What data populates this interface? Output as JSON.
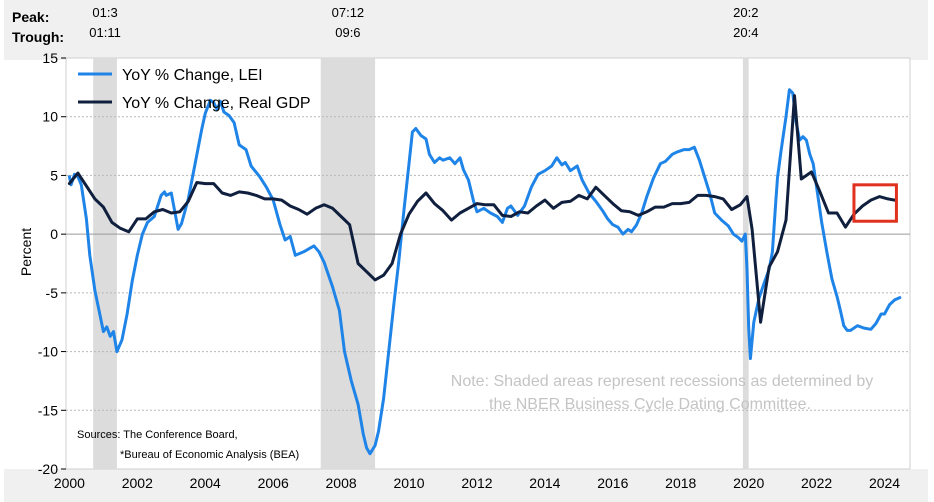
{
  "chart_data": {
    "type": "line",
    "title": "",
    "ylabel": "Percent",
    "xlabel": "",
    "ylim": [
      -20,
      15
    ],
    "xlim": [
      1999.9,
      2024.75
    ],
    "y_ticks": [
      15,
      10,
      5,
      0,
      -5,
      -10,
      -15,
      -20
    ],
    "x_ticks": [
      2000,
      2002,
      2004,
      2006,
      2008,
      2010,
      2012,
      2014,
      2016,
      2018,
      2020,
      2022,
      2024
    ],
    "legend": {
      "position": "top-left",
      "entries": [
        "YoY % Change, LEI",
        "YoY % Change, Real GDP"
      ]
    },
    "header": {
      "peak_label": "Peak:",
      "trough_label": "Trough:"
    },
    "recessions": [
      {
        "peak": "01:3",
        "trough": "01:11",
        "start": 2000.7,
        "end": 2001.4
      },
      {
        "peak": "07:12",
        "trough": "09:6",
        "start": 2007.4,
        "end": 2009.0
      },
      {
        "peak": "20:2",
        "trough": "20:4",
        "start": 2019.83,
        "end": 2020.0
      }
    ],
    "note": [
      "Note: Shaded areas represent recessions as determined by",
      "the NBER Business Cycle Dating Committee."
    ],
    "sources": [
      "Sources: The Conference Board,",
      "*Bureau of Economic Analysis (BEA)"
    ],
    "highlight_box": {
      "x_range": [
        2023.1,
        2024.35
      ],
      "y_range": [
        1.1,
        4.2
      ],
      "color": "#e0301e"
    },
    "series": [
      {
        "name": "YoY % Change, LEI",
        "color": "#1f84e8",
        "points": [
          [
            2000.0,
            4.9
          ],
          [
            2000.05,
            4.2
          ],
          [
            2000.15,
            5.1
          ],
          [
            2000.25,
            4.9
          ],
          [
            2000.35,
            4.2
          ],
          [
            2000.5,
            1.3
          ],
          [
            2000.6,
            -1.8
          ],
          [
            2000.75,
            -4.8
          ],
          [
            2000.85,
            -6.2
          ],
          [
            2001.0,
            -8.3
          ],
          [
            2001.1,
            -7.9
          ],
          [
            2001.2,
            -8.7
          ],
          [
            2001.3,
            -8.3
          ],
          [
            2001.4,
            -10.0
          ],
          [
            2001.55,
            -9.0
          ],
          [
            2001.7,
            -6.8
          ],
          [
            2001.85,
            -4.0
          ],
          [
            2002.0,
            -1.8
          ],
          [
            2002.15,
            0.0
          ],
          [
            2002.3,
            1.0
          ],
          [
            2002.5,
            1.5
          ],
          [
            2002.7,
            3.3
          ],
          [
            2002.8,
            3.6
          ],
          [
            2002.85,
            3.3
          ],
          [
            2003.0,
            3.5
          ],
          [
            2003.2,
            0.4
          ],
          [
            2003.3,
            0.9
          ],
          [
            2003.5,
            3.0
          ],
          [
            2003.7,
            6.0
          ],
          [
            2003.9,
            9.0
          ],
          [
            2004.0,
            10.3
          ],
          [
            2004.15,
            11.4
          ],
          [
            2004.25,
            11.2
          ],
          [
            2004.35,
            10.6
          ],
          [
            2004.45,
            11.3
          ],
          [
            2004.55,
            10.4
          ],
          [
            2004.7,
            10.1
          ],
          [
            2004.85,
            9.5
          ],
          [
            2005.0,
            7.6
          ],
          [
            2005.2,
            7.2
          ],
          [
            2005.35,
            5.8
          ],
          [
            2005.6,
            4.9
          ],
          [
            2005.8,
            4.0
          ],
          [
            2006.0,
            2.9
          ],
          [
            2006.2,
            0.8
          ],
          [
            2006.35,
            -0.5
          ],
          [
            2006.5,
            -0.2
          ],
          [
            2006.65,
            -1.8
          ],
          [
            2006.9,
            -1.5
          ],
          [
            2007.2,
            -1.0
          ],
          [
            2007.35,
            -1.5
          ],
          [
            2007.5,
            -2.4
          ],
          [
            2007.75,
            -4.5
          ],
          [
            2007.95,
            -6.5
          ],
          [
            2008.1,
            -10.0
          ],
          [
            2008.3,
            -12.5
          ],
          [
            2008.5,
            -14.5
          ],
          [
            2008.65,
            -17.0
          ],
          [
            2008.75,
            -18.2
          ],
          [
            2008.85,
            -18.7
          ],
          [
            2009.0,
            -18.0
          ],
          [
            2009.1,
            -16.8
          ],
          [
            2009.25,
            -14.0
          ],
          [
            2009.4,
            -10.0
          ],
          [
            2009.55,
            -6.0
          ],
          [
            2009.7,
            -2.3
          ],
          [
            2009.85,
            2.0
          ],
          [
            2010.0,
            6.0
          ],
          [
            2010.1,
            8.7
          ],
          [
            2010.2,
            9.0
          ],
          [
            2010.35,
            8.4
          ],
          [
            2010.5,
            8.1
          ],
          [
            2010.6,
            6.8
          ],
          [
            2010.75,
            6.1
          ],
          [
            2010.9,
            6.5
          ],
          [
            2011.0,
            6.3
          ],
          [
            2011.2,
            6.5
          ],
          [
            2011.35,
            6.0
          ],
          [
            2011.5,
            6.5
          ],
          [
            2011.6,
            5.5
          ],
          [
            2011.75,
            4.6
          ],
          [
            2011.9,
            2.8
          ],
          [
            2012.0,
            1.9
          ],
          [
            2012.2,
            2.2
          ],
          [
            2012.4,
            1.8
          ],
          [
            2012.6,
            1.5
          ],
          [
            2012.75,
            1.0
          ],
          [
            2012.9,
            2.2
          ],
          [
            2013.0,
            2.4
          ],
          [
            2013.2,
            1.6
          ],
          [
            2013.4,
            2.4
          ],
          [
            2013.6,
            4.0
          ],
          [
            2013.8,
            5.1
          ],
          [
            2014.0,
            5.4
          ],
          [
            2014.2,
            5.8
          ],
          [
            2014.35,
            6.5
          ],
          [
            2014.5,
            5.9
          ],
          [
            2014.6,
            6.1
          ],
          [
            2014.75,
            5.4
          ],
          [
            2014.95,
            5.8
          ],
          [
            2015.1,
            4.6
          ],
          [
            2015.3,
            3.5
          ],
          [
            2015.5,
            2.8
          ],
          [
            2015.7,
            2.0
          ],
          [
            2015.85,
            1.3
          ],
          [
            2016.0,
            0.8
          ],
          [
            2016.15,
            0.6
          ],
          [
            2016.3,
            0.0
          ],
          [
            2016.45,
            0.4
          ],
          [
            2016.55,
            0.2
          ],
          [
            2016.7,
            0.8
          ],
          [
            2016.85,
            1.8
          ],
          [
            2017.0,
            3.2
          ],
          [
            2017.2,
            4.8
          ],
          [
            2017.4,
            6.0
          ],
          [
            2017.55,
            6.2
          ],
          [
            2017.75,
            6.8
          ],
          [
            2017.9,
            7.0
          ],
          [
            2018.1,
            7.2
          ],
          [
            2018.25,
            7.2
          ],
          [
            2018.4,
            7.4
          ],
          [
            2018.55,
            6.3
          ],
          [
            2018.7,
            4.9
          ],
          [
            2018.85,
            3.5
          ],
          [
            2019.0,
            1.8
          ],
          [
            2019.2,
            1.2
          ],
          [
            2019.4,
            0.7
          ],
          [
            2019.55,
            0.0
          ],
          [
            2019.7,
            -0.3
          ],
          [
            2019.8,
            -0.6
          ],
          [
            2019.9,
            0.0
          ],
          [
            2019.95,
            -3.0
          ],
          [
            2020.0,
            -8.0
          ],
          [
            2020.05,
            -10.6
          ],
          [
            2020.15,
            -7.5
          ],
          [
            2020.3,
            -5.5
          ],
          [
            2020.45,
            -4.2
          ],
          [
            2020.6,
            -3.0
          ],
          [
            2020.7,
            -1.5
          ],
          [
            2020.8,
            2.8
          ],
          [
            2020.85,
            4.8
          ],
          [
            2020.95,
            7.0
          ],
          [
            2021.1,
            10.0
          ],
          [
            2021.2,
            12.3
          ],
          [
            2021.3,
            12.0
          ],
          [
            2021.4,
            9.5
          ],
          [
            2021.5,
            8.0
          ],
          [
            2021.6,
            8.3
          ],
          [
            2021.7,
            8.0
          ],
          [
            2021.8,
            6.8
          ],
          [
            2021.9,
            6.0
          ],
          [
            2022.0,
            4.0
          ],
          [
            2022.15,
            1.0
          ],
          [
            2022.3,
            -1.5
          ],
          [
            2022.45,
            -3.8
          ],
          [
            2022.6,
            -5.3
          ],
          [
            2022.7,
            -6.5
          ],
          [
            2022.8,
            -7.8
          ],
          [
            2022.9,
            -8.2
          ],
          [
            2023.0,
            -8.2
          ],
          [
            2023.2,
            -7.8
          ],
          [
            2023.4,
            -8.0
          ],
          [
            2023.6,
            -8.1
          ],
          [
            2023.75,
            -7.6
          ],
          [
            2023.9,
            -6.8
          ],
          [
            2024.0,
            -6.8
          ],
          [
            2024.15,
            -6.0
          ],
          [
            2024.3,
            -5.6
          ],
          [
            2024.45,
            -5.4
          ]
        ]
      },
      {
        "name": "YoY % Change, Real GDP",
        "color": "#0f1f3d",
        "points": [
          [
            2000.0,
            4.3
          ],
          [
            2000.25,
            5.2
          ],
          [
            2000.5,
            4.1
          ],
          [
            2000.75,
            3.0
          ],
          [
            2001.0,
            2.3
          ],
          [
            2001.25,
            1.0
          ],
          [
            2001.5,
            0.5
          ],
          [
            2001.75,
            0.2
          ],
          [
            2002.0,
            1.3
          ],
          [
            2002.25,
            1.3
          ],
          [
            2002.5,
            1.9
          ],
          [
            2002.75,
            2.1
          ],
          [
            2003.0,
            1.8
          ],
          [
            2003.25,
            1.9
          ],
          [
            2003.5,
            2.8
          ],
          [
            2003.75,
            4.4
          ],
          [
            2004.0,
            4.3
          ],
          [
            2004.25,
            4.3
          ],
          [
            2004.5,
            3.5
          ],
          [
            2004.75,
            3.3
          ],
          [
            2005.0,
            3.6
          ],
          [
            2005.25,
            3.5
          ],
          [
            2005.5,
            3.3
          ],
          [
            2005.75,
            3.0
          ],
          [
            2006.0,
            3.0
          ],
          [
            2006.25,
            2.9
          ],
          [
            2006.5,
            2.4
          ],
          [
            2006.75,
            2.1
          ],
          [
            2007.0,
            1.7
          ],
          [
            2007.25,
            2.2
          ],
          [
            2007.5,
            2.5
          ],
          [
            2007.75,
            2.2
          ],
          [
            2008.0,
            1.5
          ],
          [
            2008.25,
            0.8
          ],
          [
            2008.5,
            -2.5
          ],
          [
            2008.75,
            -3.2
          ],
          [
            2009.0,
            -3.9
          ],
          [
            2009.25,
            -3.5
          ],
          [
            2009.5,
            -2.5
          ],
          [
            2009.75,
            0.0
          ],
          [
            2010.0,
            1.7
          ],
          [
            2010.25,
            2.8
          ],
          [
            2010.5,
            3.5
          ],
          [
            2010.75,
            2.6
          ],
          [
            2011.0,
            2.0
          ],
          [
            2011.25,
            1.2
          ],
          [
            2011.5,
            1.8
          ],
          [
            2011.75,
            2.2
          ],
          [
            2012.0,
            2.6
          ],
          [
            2012.25,
            2.5
          ],
          [
            2012.5,
            2.5
          ],
          [
            2012.75,
            1.6
          ],
          [
            2013.0,
            1.5
          ],
          [
            2013.25,
            1.9
          ],
          [
            2013.5,
            1.8
          ],
          [
            2013.75,
            2.4
          ],
          [
            2014.0,
            2.9
          ],
          [
            2014.25,
            2.2
          ],
          [
            2014.5,
            2.7
          ],
          [
            2014.75,
            2.8
          ],
          [
            2015.0,
            3.3
          ],
          [
            2015.25,
            3.0
          ],
          [
            2015.5,
            4.0
          ],
          [
            2015.75,
            3.3
          ],
          [
            2016.0,
            2.6
          ],
          [
            2016.25,
            2.0
          ],
          [
            2016.5,
            1.9
          ],
          [
            2016.75,
            1.6
          ],
          [
            2017.0,
            1.9
          ],
          [
            2017.25,
            2.3
          ],
          [
            2017.5,
            2.3
          ],
          [
            2017.75,
            2.6
          ],
          [
            2018.0,
            2.6
          ],
          [
            2018.25,
            2.7
          ],
          [
            2018.5,
            3.3
          ],
          [
            2018.75,
            3.3
          ],
          [
            2019.0,
            3.2
          ],
          [
            2019.25,
            3.0
          ],
          [
            2019.5,
            2.1
          ],
          [
            2019.75,
            2.5
          ],
          [
            2019.95,
            3.2
          ],
          [
            2020.1,
            0.4
          ],
          [
            2020.35,
            -7.5
          ],
          [
            2020.6,
            -2.8
          ],
          [
            2020.85,
            -1.5
          ],
          [
            2021.1,
            1.2
          ],
          [
            2021.35,
            11.8
          ],
          [
            2021.55,
            4.7
          ],
          [
            2021.85,
            5.3
          ],
          [
            2022.1,
            3.6
          ],
          [
            2022.35,
            1.8
          ],
          [
            2022.6,
            1.8
          ],
          [
            2022.85,
            0.6
          ],
          [
            2023.1,
            1.7
          ],
          [
            2023.35,
            2.4
          ],
          [
            2023.6,
            2.9
          ],
          [
            2023.85,
            3.2
          ],
          [
            2024.1,
            3.0
          ],
          [
            2024.3,
            2.9
          ]
        ]
      }
    ]
  }
}
